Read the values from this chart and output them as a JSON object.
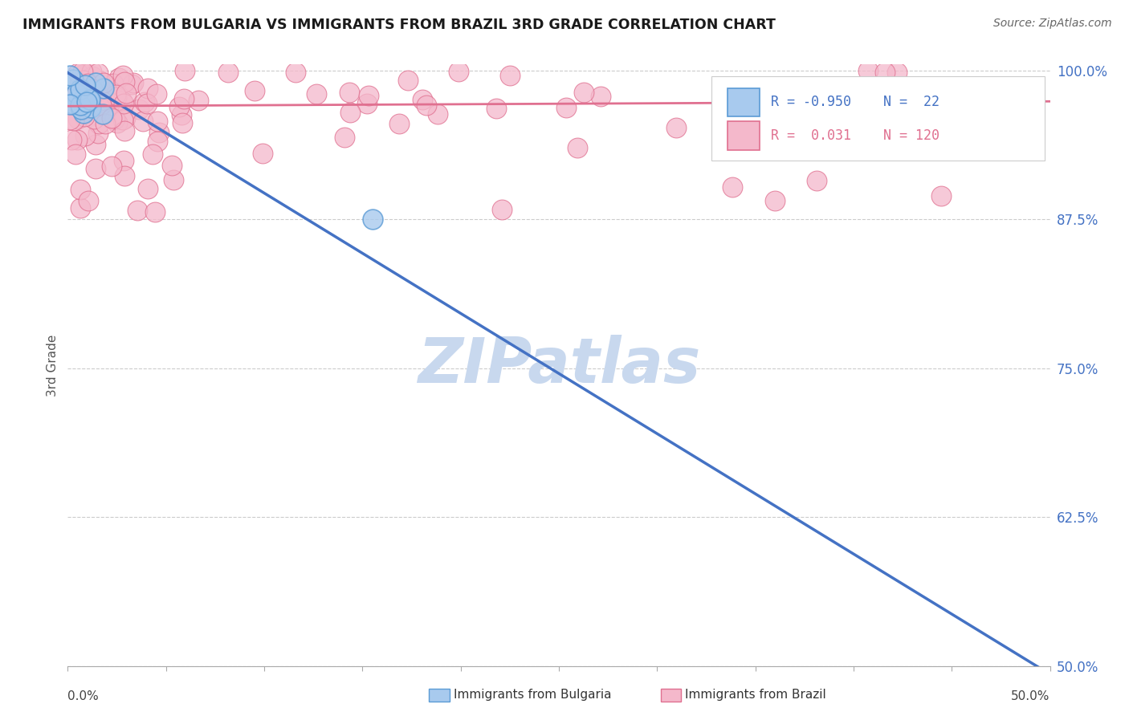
{
  "title": "IMMIGRANTS FROM BULGARIA VS IMMIGRANTS FROM BRAZIL 3RD GRADE CORRELATION CHART",
  "source": "Source: ZipAtlas.com",
  "ylabel": "3rd Grade",
  "xmin": 0.0,
  "xmax": 0.5,
  "ymin": 0.5,
  "ymax": 1.005,
  "yticks": [
    0.5,
    0.625,
    0.75,
    0.875,
    1.0
  ],
  "ytick_labels": [
    "50.0%",
    "62.5%",
    "75.0%",
    "87.5%",
    "100.0%"
  ],
  "legend_R_bulgaria": "-0.950",
  "legend_N_bulgaria": "22",
  "legend_R_brazil": "0.031",
  "legend_N_brazil": "120",
  "color_bulgaria_face": "#A8CAEE",
  "color_bulgaria_edge": "#5B9BD5",
  "color_brazil_face": "#F4B8CB",
  "color_brazil_edge": "#E07090",
  "color_line_bulgaria": "#4472C4",
  "color_line_brazil": "#E07090",
  "watermark": "ZIPatlas",
  "watermark_color": "#C8D8EE",
  "bg_line_x0": 0.0,
  "bg_line_y0": 0.998,
  "bg_line_x1": 0.5,
  "bg_line_y1": 0.493,
  "bz_line_x0": 0.0,
  "bz_line_y0": 0.97,
  "bz_line_x1": 0.5,
  "bz_line_y1": 0.974
}
